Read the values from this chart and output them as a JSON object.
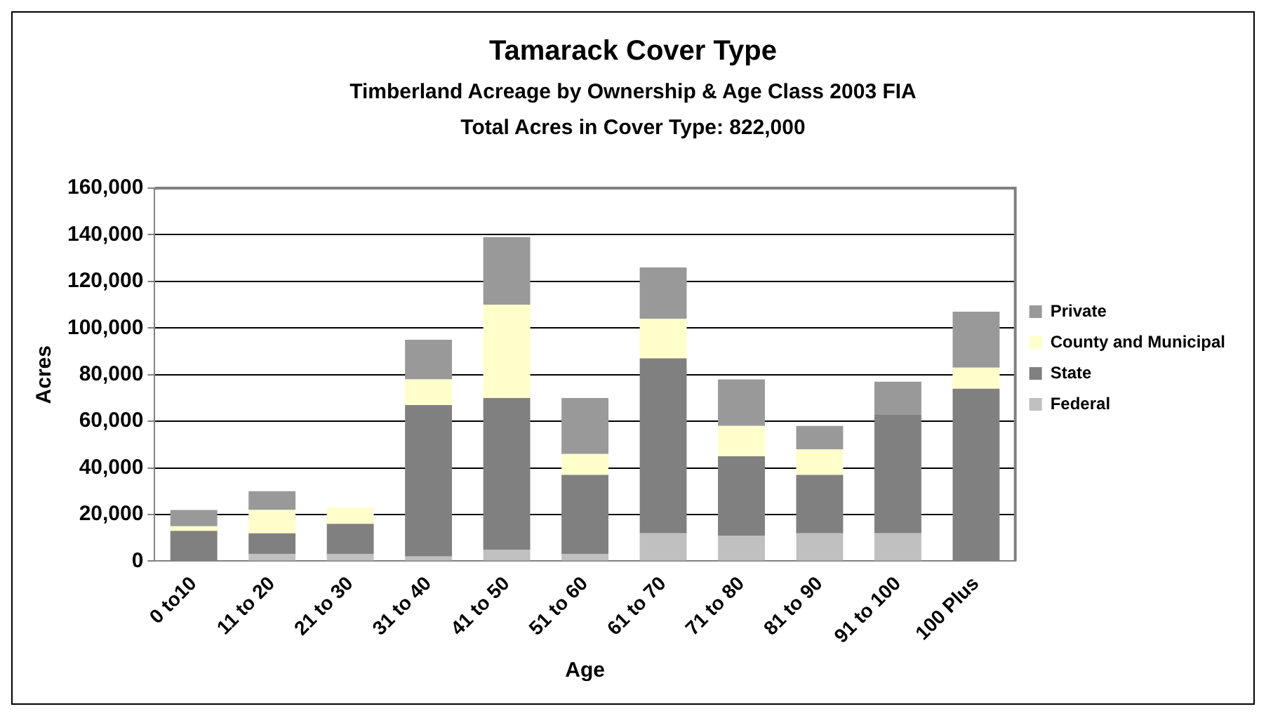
{
  "chart_data": {
    "type": "bar",
    "title": "Tamarack Cover Type",
    "subtitle": "Timberland Acreage by Ownership & Age Class 2003 FIA",
    "annotations": [
      "Total Acres in Cover Type: 822,000"
    ],
    "xlabel": "Age",
    "ylabel": "Acres",
    "categories": [
      "0 to10",
      "11 to 20",
      "21 to 30",
      "31 to 40",
      "41 to 50",
      "51 to 60",
      "61 to 70",
      "71 to 80",
      "81 to 90",
      "91 to 100",
      "100 Plus"
    ],
    "stacked": true,
    "series": [
      {
        "name": "Federal",
        "color": "#c0c0c0",
        "values": [
          0,
          3000,
          3000,
          2000,
          5000,
          3000,
          12000,
          11000,
          12000,
          12000,
          0
        ]
      },
      {
        "name": "State",
        "color": "#808080",
        "values": [
          13000,
          9000,
          13000,
          65000,
          65000,
          34000,
          75000,
          34000,
          25000,
          51000,
          74000
        ]
      },
      {
        "name": "County and Municipal",
        "color": "#ffffcc",
        "values": [
          2000,
          10000,
          7000,
          11000,
          40000,
          9000,
          17000,
          13000,
          11000,
          0,
          9000
        ]
      },
      {
        "name": "Private",
        "color": "#999999",
        "values": [
          7000,
          8000,
          0,
          17000,
          29000,
          24000,
          22000,
          20000,
          10000,
          14000,
          24000
        ]
      }
    ],
    "ylim": [
      0,
      160000
    ],
    "yticks": [
      0,
      {
        "value": 20000,
        "label": "20,000"
      },
      {
        "value": 40000,
        "label": "40,000"
      },
      {
        "value": 60000,
        "label": "60,000"
      },
      {
        "value": 80000,
        "label": "80,000"
      },
      {
        "value": 100000,
        "label": "100,000"
      },
      {
        "value": 120000,
        "label": "120,000"
      },
      {
        "value": 140000,
        "label": "140,000"
      },
      {
        "value": 160000,
        "label": "160,000"
      }
    ],
    "grid": "y",
    "legend": "right"
  }
}
